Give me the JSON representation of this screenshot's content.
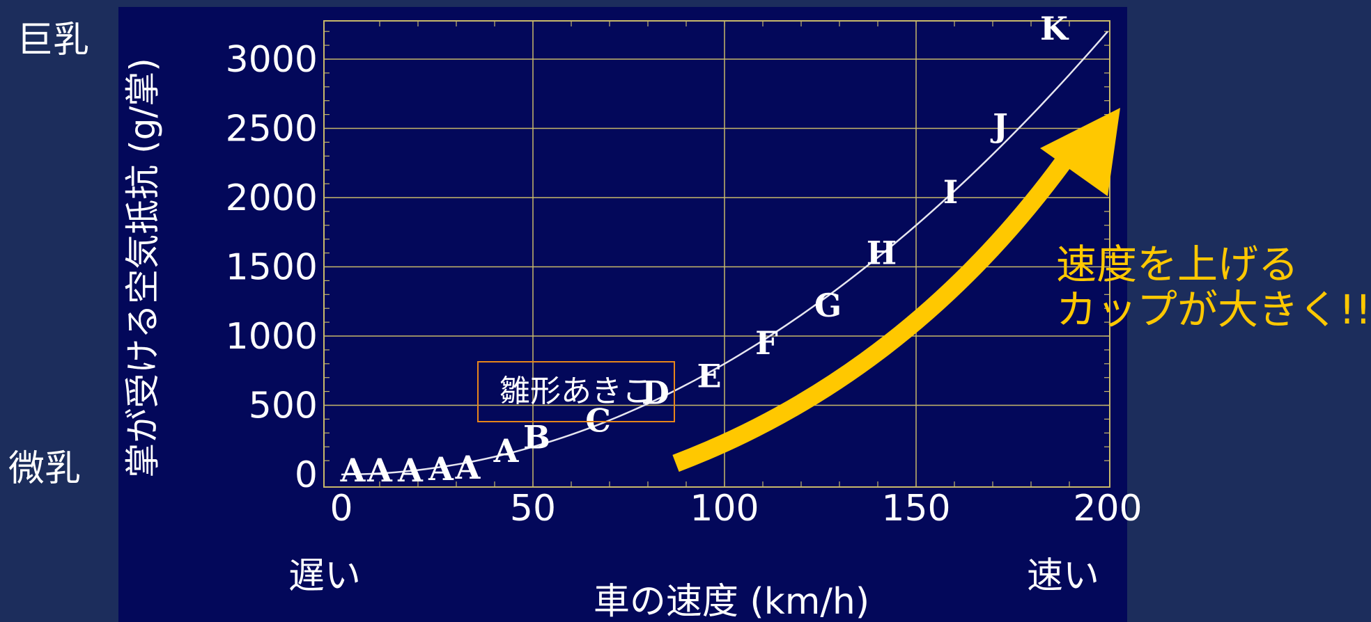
{
  "chart_data": {
    "type": "scatter",
    "title": "",
    "xlabel": "車の速度 (km/h)",
    "ylabel": "掌が受ける空気抵抗 (g/掌)",
    "xlim": [
      0,
      200
    ],
    "ylim": [
      0,
      3300
    ],
    "x_ticks": [
      0,
      50,
      100,
      150,
      200
    ],
    "y_ticks": [
      0,
      500,
      1000,
      1500,
      2000,
      2500,
      3000
    ],
    "grid": true,
    "points": [
      {
        "x": 3,
        "y": 30,
        "label": "A"
      },
      {
        "x": 10,
        "y": 30,
        "label": "A"
      },
      {
        "x": 18,
        "y": 30,
        "label": "A"
      },
      {
        "x": 26,
        "y": 40,
        "label": "A"
      },
      {
        "x": 33,
        "y": 50,
        "label": "A"
      },
      {
        "x": 43,
        "y": 170,
        "label": "A"
      },
      {
        "x": 51,
        "y": 270,
        "label": "B"
      },
      {
        "x": 67,
        "y": 390,
        "label": "C"
      },
      {
        "x": 82,
        "y": 590,
        "label": "D"
      },
      {
        "x": 96,
        "y": 710,
        "label": "E"
      },
      {
        "x": 111,
        "y": 950,
        "label": "F"
      },
      {
        "x": 127,
        "y": 1220,
        "label": "G"
      },
      {
        "x": 141,
        "y": 1600,
        "label": "H"
      },
      {
        "x": 159,
        "y": 2040,
        "label": "I"
      },
      {
        "x": 172,
        "y": 2520,
        "label": "J"
      },
      {
        "x": 186,
        "y": 3220,
        "label": "K"
      }
    ],
    "fit_curve": {
      "type": "quadratic",
      "coefficient": 0.08
    },
    "annotation": "雛形あきこ"
  },
  "labels": {
    "top_left": "巨乳",
    "bottom_left": "微乳",
    "bottom_slow": "遅い",
    "bottom_fast": "速い",
    "callout_line1": "速度を上げる",
    "callout_line2": "カップが大きく!!"
  },
  "colors": {
    "page_bg": "#1c2d5c",
    "plot_bg": "#03085a",
    "grid": "#c8b86a",
    "text": "#ffffff",
    "arrow": "#ffc800",
    "annotation_border": "#e8861a"
  }
}
